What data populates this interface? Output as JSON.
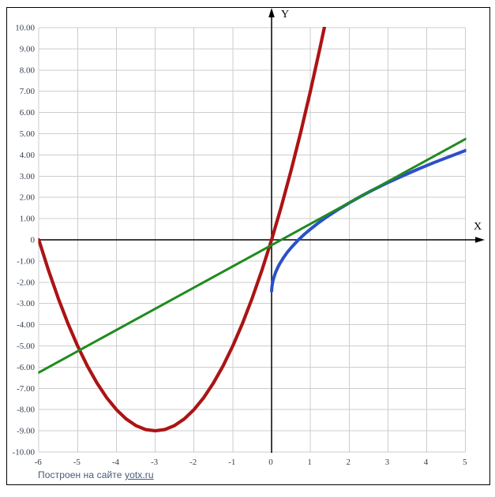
{
  "footer": {
    "prefix": "Построен на сайте ",
    "link": "yotx.ru"
  },
  "axes": {
    "x_label": "X",
    "y_label": "Y",
    "x_ticks": [
      "-6",
      "-5",
      "-4",
      "-3",
      "-2",
      "-1",
      "0",
      "1",
      "2",
      "3",
      "4",
      "5"
    ],
    "y_ticks": [
      "10.00",
      "9.00",
      "8.00",
      "7.00",
      "6.00",
      "5.00",
      "4.00",
      "3.00",
      "2.00",
      "1.00",
      "0",
      "-1.00",
      "-2.00",
      "-3.00",
      "-4.00",
      "-5.00",
      "-6.00",
      "-7.00",
      "-8.00",
      "-9.00",
      "-10.00"
    ],
    "tick_color": "#36404f",
    "grid_color": "#cdcdcd",
    "axis_color": "#000000"
  },
  "chart_data": {
    "type": "line",
    "title": "",
    "xlabel": "X",
    "ylabel": "Y",
    "xlim": [
      -6,
      5
    ],
    "ylim": [
      -10,
      10
    ],
    "grid": true,
    "legend": "none",
    "series": [
      {
        "name": "red-parabola",
        "formula": "y = x^2 + 6x",
        "color": "#ab1414",
        "points": [
          [
            -6,
            0
          ],
          [
            -5.75,
            -1.44
          ],
          [
            -5.5,
            -2.75
          ],
          [
            -5.25,
            -3.94
          ],
          [
            -5,
            -5
          ],
          [
            -4.75,
            -5.94
          ],
          [
            -4.5,
            -6.75
          ],
          [
            -4.25,
            -7.44
          ],
          [
            -4,
            -8
          ],
          [
            -3.75,
            -8.44
          ],
          [
            -3.5,
            -8.75
          ],
          [
            -3.25,
            -8.94
          ],
          [
            -3,
            -9
          ],
          [
            -2.75,
            -8.94
          ],
          [
            -2.5,
            -8.75
          ],
          [
            -2.25,
            -8.44
          ],
          [
            -2,
            -8
          ],
          [
            -1.75,
            -7.44
          ],
          [
            -1.5,
            -6.75
          ],
          [
            -1.25,
            -5.94
          ],
          [
            -1,
            -5
          ],
          [
            -0.75,
            -3.94
          ],
          [
            -0.5,
            -2.75
          ],
          [
            -0.25,
            -1.44
          ],
          [
            0,
            0
          ],
          [
            0.25,
            1.56
          ],
          [
            0.5,
            3.25
          ],
          [
            0.75,
            5.06
          ],
          [
            1,
            7
          ],
          [
            1.25,
            9.06
          ],
          [
            1.36,
            10
          ]
        ]
      },
      {
        "name": "blue-sqrt-curve",
        "formula": "y = 3*sqrt(x) - 2.5",
        "color": "#2b50c8",
        "points": [
          [
            0.001,
            -2.41
          ],
          [
            0.01,
            -2.2
          ],
          [
            0.03,
            -1.98
          ],
          [
            0.06,
            -1.77
          ],
          [
            0.1,
            -1.55
          ],
          [
            0.15,
            -1.34
          ],
          [
            0.2,
            -1.16
          ],
          [
            0.3,
            -0.86
          ],
          [
            0.4,
            -0.6
          ],
          [
            0.5,
            -0.38
          ],
          [
            0.6,
            -0.18
          ],
          [
            0.7,
            0.01
          ],
          [
            0.85,
            0.27
          ],
          [
            1,
            0.5
          ],
          [
            1.2,
            0.79
          ],
          [
            1.4,
            1.05
          ],
          [
            1.7,
            1.41
          ],
          [
            2,
            1.74
          ],
          [
            2.3,
            2.05
          ],
          [
            2.6,
            2.34
          ],
          [
            3,
            2.7
          ],
          [
            3.4,
            3.03
          ],
          [
            3.8,
            3.35
          ],
          [
            4.2,
            3.65
          ],
          [
            4.6,
            3.93
          ],
          [
            5,
            4.21
          ]
        ]
      },
      {
        "name": "green-tangent-line",
        "formula": "y = x - 0.25",
        "color": "#1f8b1f",
        "points": [
          [
            -6,
            -6.25
          ],
          [
            5,
            4.75
          ]
        ]
      }
    ]
  }
}
